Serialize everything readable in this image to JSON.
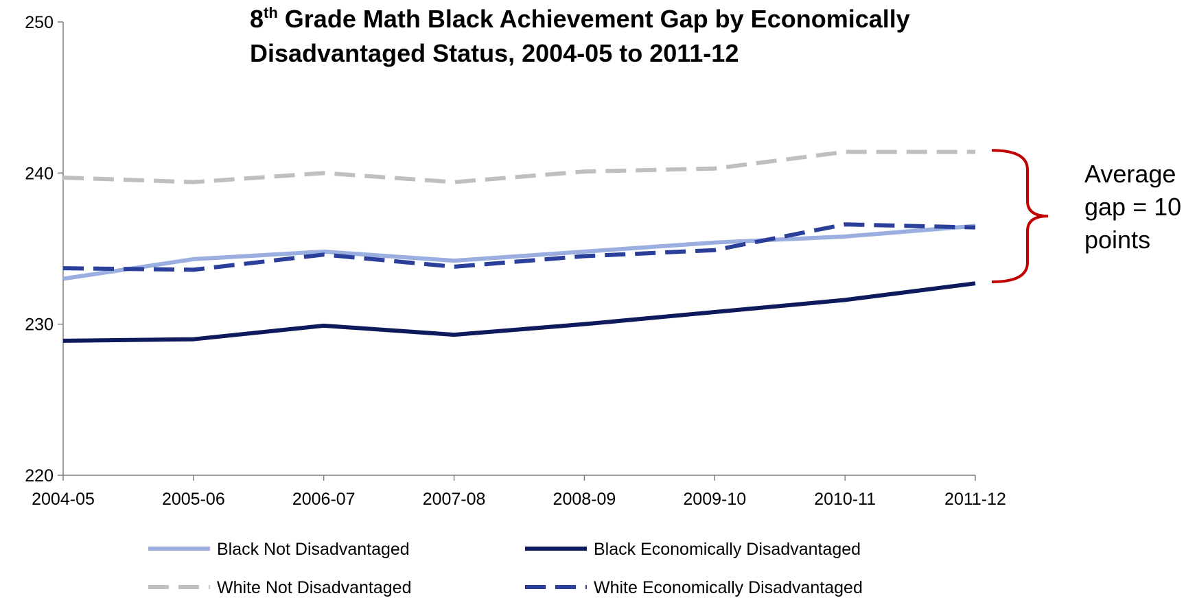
{
  "chart_data": {
    "type": "line",
    "title": {
      "prefix": "8",
      "superscript": "th",
      "line1_rest": " Grade Math Black Achievement Gap by Economically",
      "line2": "Disadvantaged Status, 2004-05 to 2011-12"
    },
    "xlabel": "",
    "ylabel": "",
    "categories": [
      "2004-05",
      "2005-06",
      "2006-07",
      "2007-08",
      "2008-09",
      "2009-10",
      "2010-11",
      "2011-12"
    ],
    "ylim": [
      220,
      250
    ],
    "yticks": [
      220,
      230,
      240,
      250
    ],
    "grid": false,
    "legend_position": "bottom",
    "series": [
      {
        "name": "Black Not Disadvantaged",
        "values": [
          233.0,
          234.3,
          234.8,
          234.2,
          234.8,
          235.4,
          235.8,
          236.5
        ],
        "color": "#9aaee0",
        "dashed": false
      },
      {
        "name": "Black Economically Disadvantaged",
        "values": [
          228.9,
          229.0,
          229.9,
          229.3,
          230.0,
          230.8,
          231.6,
          232.7
        ],
        "color": "#0e1a5c",
        "dashed": false
      },
      {
        "name": "White Not Disadvantaged",
        "values": [
          239.7,
          239.4,
          240.0,
          239.4,
          240.1,
          240.3,
          241.4,
          241.4
        ],
        "color": "#bfbfbf",
        "dashed": true
      },
      {
        "name": "White Economically Disadvantaged",
        "values": [
          233.7,
          233.6,
          234.6,
          233.8,
          234.5,
          234.9,
          236.6,
          236.4
        ],
        "color": "#2a3f9a",
        "dashed": true
      }
    ],
    "annotation": {
      "lines": [
        "Average",
        "gap = 10",
        "points"
      ],
      "bracket_from": 241.5,
      "bracket_to": 232.8,
      "bracket_color": "#c00000"
    }
  }
}
